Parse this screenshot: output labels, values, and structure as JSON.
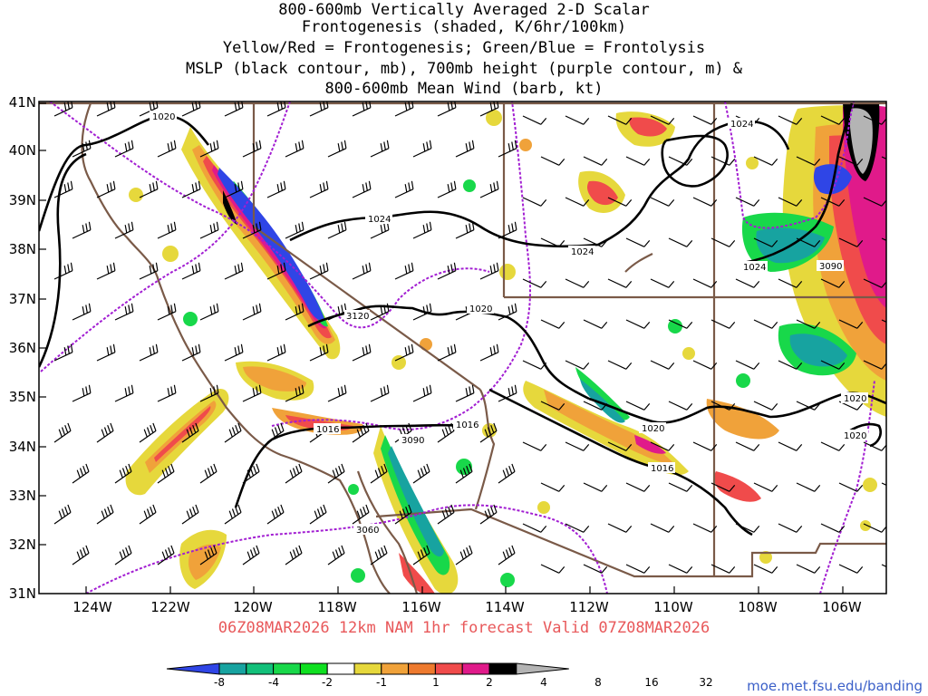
{
  "title": {
    "lines": [
      "800-600mb Vertically Averaged 2-D Scalar",
      "Frontogenesis (shaded, K/6hr/100km)",
      "Yellow/Red = Frontogenesis;  Green/Blue = Frontolysis",
      "MSLP (black contour, mb), 700mb height (purple contour, m) &",
      "800-600mb Mean Wind (barb, kt)"
    ]
  },
  "valid_line": "06Z08MAR2026 12km NAM 1hr forecast Valid 07Z08MAR2026",
  "credit": "moe.met.fsu.edu/banding",
  "axes": {
    "lat_labels": [
      "41N",
      "40N",
      "39N",
      "38N",
      "37N",
      "36N",
      "35N",
      "34N",
      "33N",
      "32N",
      "31N"
    ],
    "lon_labels": [
      "124W",
      "122W",
      "120W",
      "118W",
      "116W",
      "114W",
      "112W",
      "110W",
      "108W",
      "106W"
    ]
  },
  "contour_labels": {
    "mslp": [
      "1020",
      "1024",
      "1024",
      "1024",
      "1024",
      "1020",
      "1020",
      "1020",
      "1020",
      "1016",
      "1016",
      "1016"
    ],
    "height": [
      "3120",
      "3090",
      "3060",
      "3090"
    ]
  },
  "colorbar": {
    "labels": [
      "-8",
      "-4",
      "-2",
      "-1",
      "1",
      "2",
      "4",
      "8",
      "16",
      "32"
    ],
    "colors": [
      "#2f45e6",
      "#17a3a0",
      "#12c07a",
      "#18d84a",
      "#0fe020",
      "#ffffff",
      "#e6d83c",
      "#f0a23a",
      "#ee7a2e",
      "#f04b4b",
      "#e01a8a",
      "#000000",
      "#b4b4b4"
    ]
  },
  "colors": {
    "mslp": "#000000",
    "height": "#a21ed2",
    "borders": "#7a5a48",
    "frontogenesis_weak": "#e6d83c",
    "frontogenesis_mod": "#f0a23a",
    "frontogenesis_strong": "#f04b4b",
    "frontolysis_weak": "#18d84a",
    "frontolysis_mod": "#17a3a0",
    "frontolysis_strong": "#2f45e6"
  }
}
